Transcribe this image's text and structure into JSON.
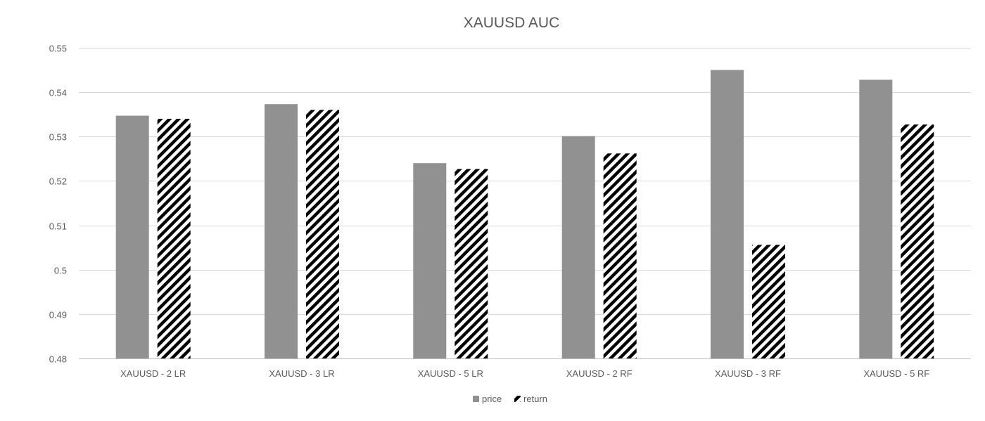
{
  "chart_data": {
    "type": "bar",
    "title": "XAUUSD AUC",
    "xlabel": "",
    "ylabel": "",
    "categories": [
      "XAUUSD - 2 LR",
      "XAUUSD - 3 LR",
      "XAUUSD - 5 LR",
      "XAUUSD - 2 RF",
      "XAUUSD - 3 RF",
      "XAUUSD - 5 RF"
    ],
    "series": [
      {
        "name": "price",
        "color": "#919191",
        "pattern": "solid",
        "values": [
          0.5347,
          0.5373,
          0.524,
          0.5301,
          0.545,
          0.5428
        ]
      },
      {
        "name": "return",
        "color": "#000000",
        "pattern": "diagonal-hatch",
        "values": [
          0.534,
          0.536,
          0.5227,
          0.5262,
          0.5056,
          0.5327
        ]
      }
    ],
    "ylim": [
      0.48,
      0.55
    ],
    "y_ticks": [
      0.48,
      0.49,
      0.5,
      0.51,
      0.52,
      0.53,
      0.54,
      0.55
    ],
    "y_tick_labels": [
      "0.48",
      "0.49",
      "0.5",
      "0.51",
      "0.52",
      "0.53",
      "0.54",
      "0.55"
    ],
    "grid": true,
    "legend_position": "bottom-center"
  }
}
